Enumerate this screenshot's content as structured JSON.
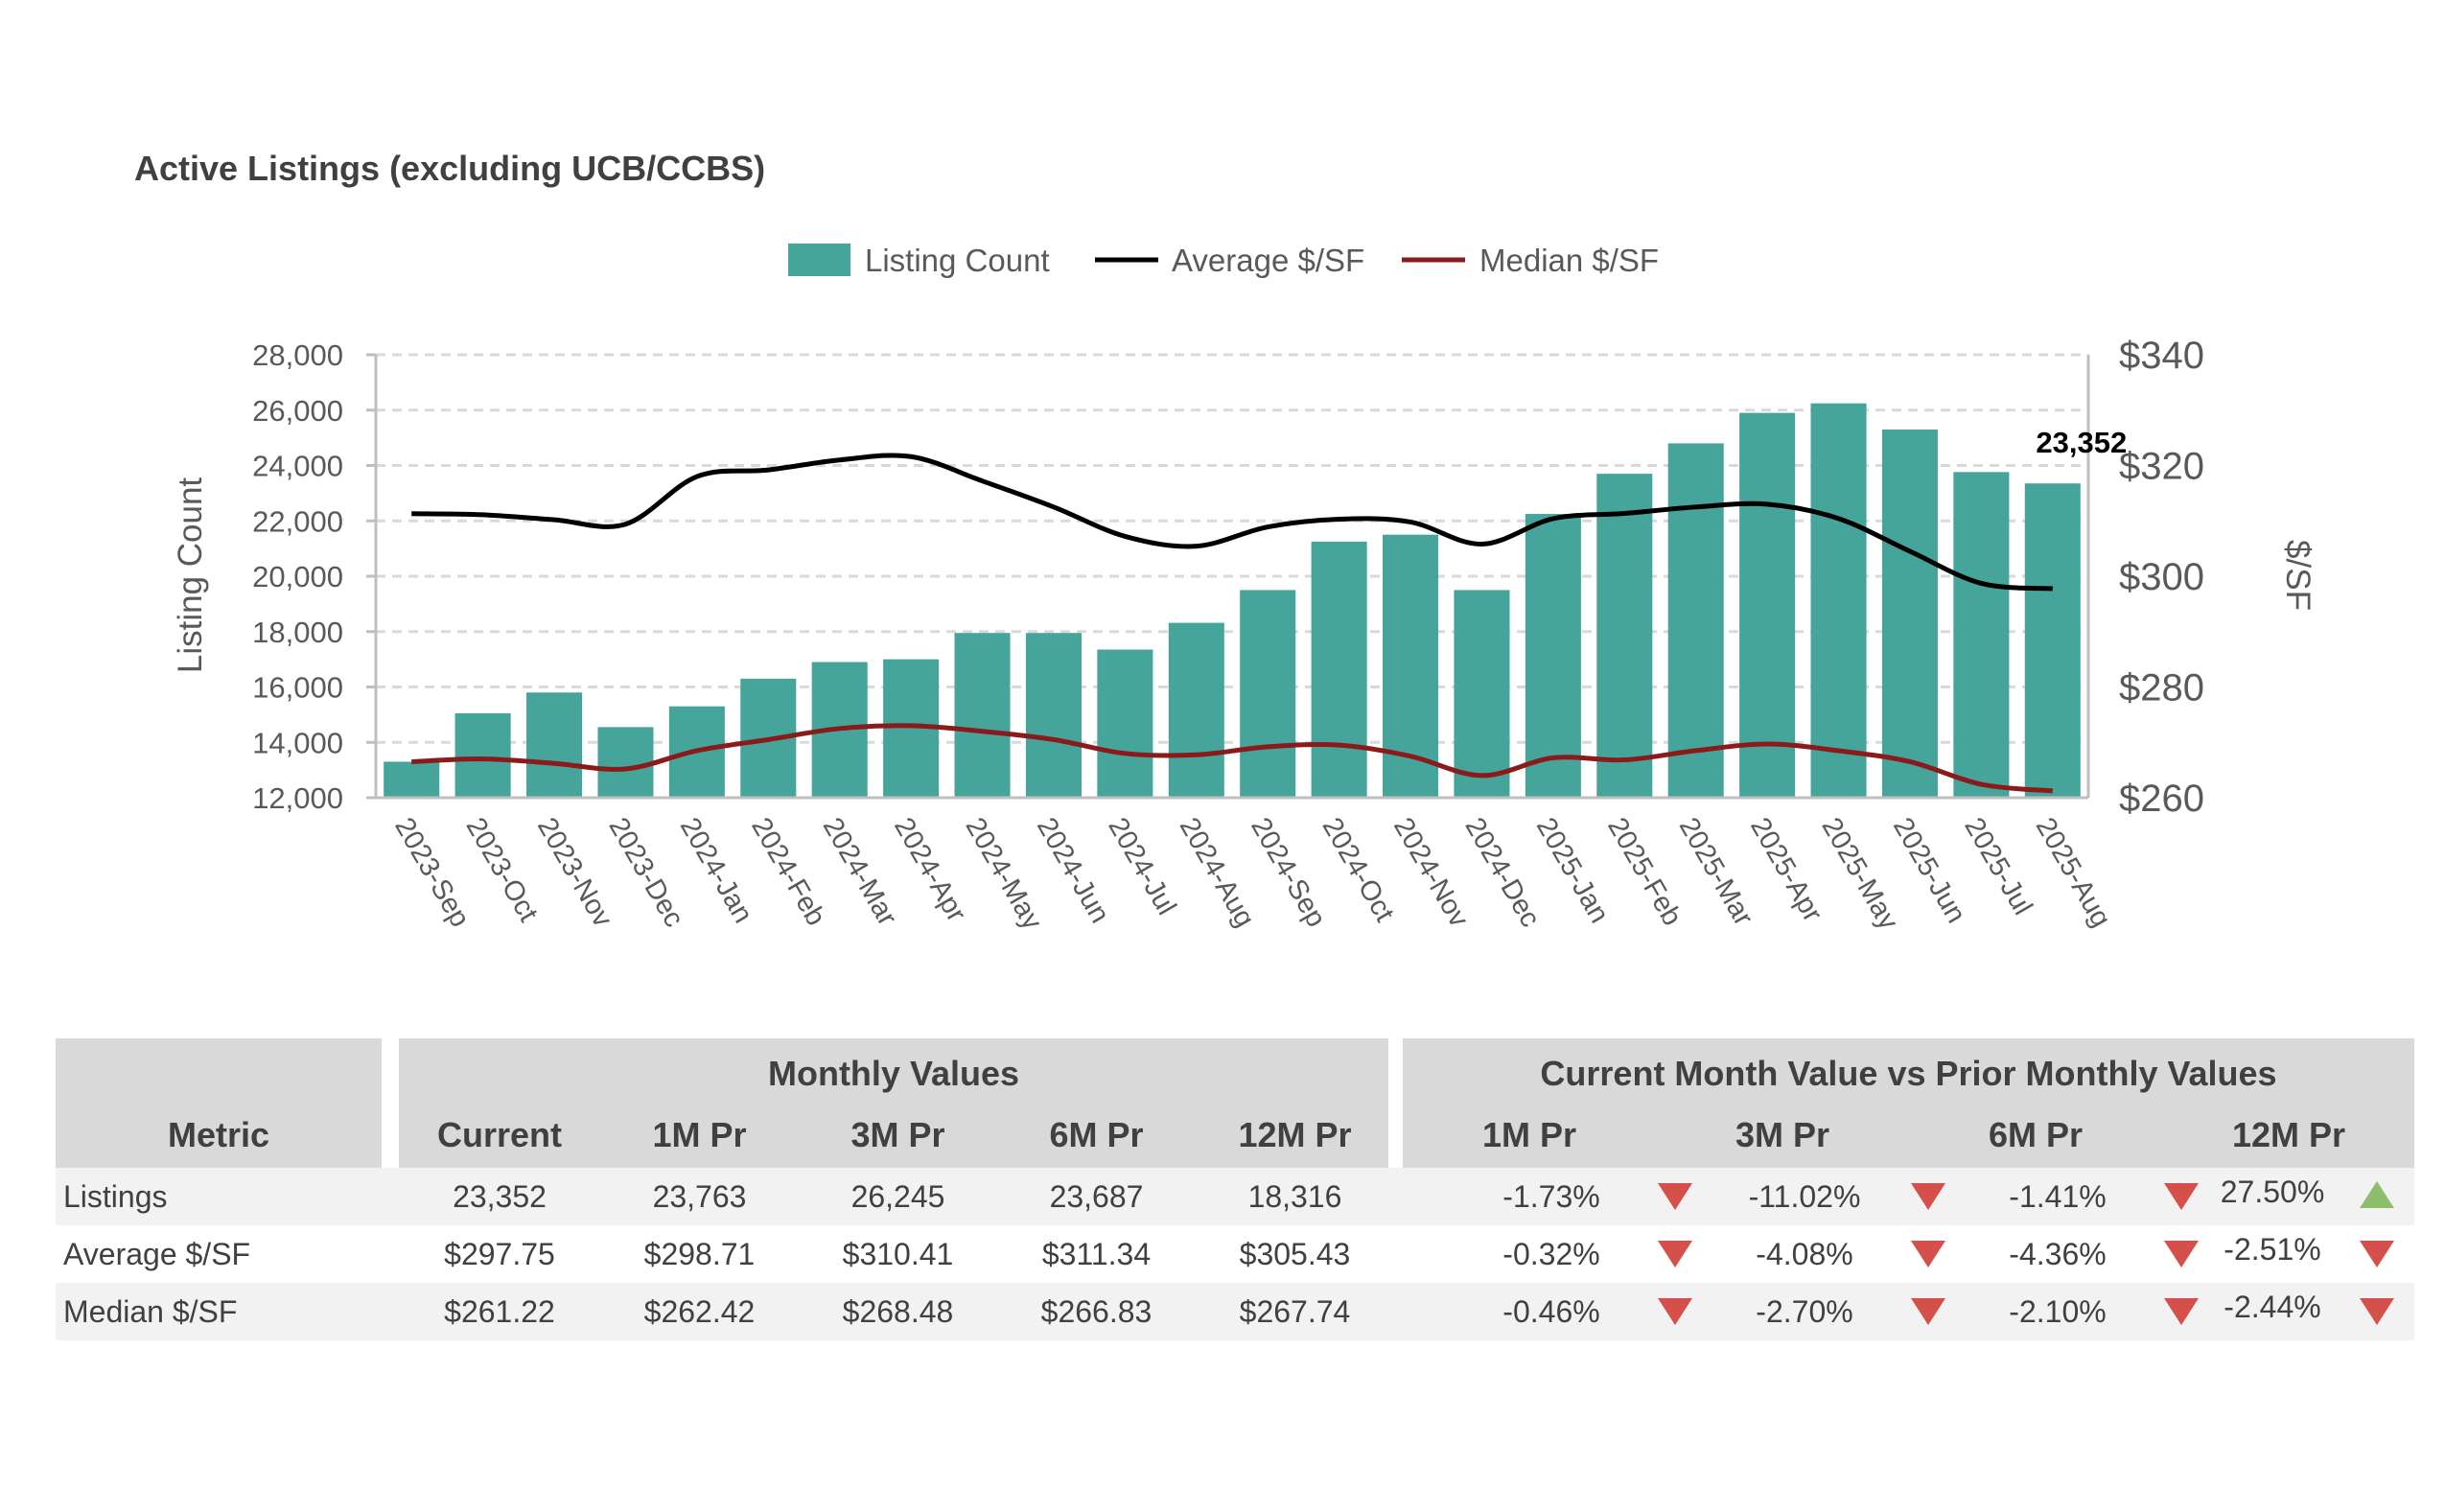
{
  "title": "Active Listings (excluding UCB/CCBS)",
  "chart_data": {
    "type": "bar+line",
    "categories": [
      "2023-Sep",
      "2023-Oct",
      "2023-Nov",
      "2023-Dec",
      "2024-Jan",
      "2024-Feb",
      "2024-Mar",
      "2024-Apr",
      "2024-May",
      "2024-Jun",
      "2024-Jul",
      "2024-Aug",
      "2024-Sep",
      "2024-Oct",
      "2024-Nov",
      "2024-Dec",
      "2025-Jan",
      "2025-Feb",
      "2025-Mar",
      "2025-Apr",
      "2025-May",
      "2025-Jun",
      "2025-Jul",
      "2025-Aug"
    ],
    "series": [
      {
        "name": "Listing Count",
        "type": "bar",
        "axis": "left",
        "color": "#45a59a",
        "values": [
          13300,
          15050,
          15800,
          14550,
          15300,
          16300,
          16900,
          17000,
          17950,
          17950,
          17350,
          18316,
          19500,
          21250,
          21500,
          19500,
          22250,
          23700,
          24800,
          25900,
          26245,
          25300,
          23763,
          23352
        ]
      },
      {
        "name": "Average $/SF",
        "type": "line",
        "axis": "right",
        "color": "#000000",
        "values": [
          311.3,
          311.1,
          310.2,
          309.4,
          318.0,
          319.2,
          321.0,
          321.6,
          317.2,
          312.5,
          307.2,
          305.43,
          308.9,
          310.3,
          309.8,
          305.8,
          310.4,
          311.34,
          312.5,
          313.0,
          310.41,
          304.5,
          298.71,
          297.75
        ]
      },
      {
        "name": "Median $/SF",
        "type": "line",
        "axis": "right",
        "color": "#8b1a1a",
        "values": [
          266.5,
          267.0,
          266.2,
          265.2,
          268.5,
          270.5,
          272.5,
          273.0,
          272.0,
          270.5,
          268.0,
          267.74,
          269.2,
          269.5,
          267.5,
          264.0,
          267.2,
          266.83,
          268.5,
          269.7,
          268.48,
          266.5,
          262.42,
          261.22
        ]
      }
    ],
    "y_left": {
      "title": "Listing Count",
      "min": 12000,
      "max": 28000,
      "ticks": [
        "12,000",
        "14,000",
        "16,000",
        "18,000",
        "20,000",
        "22,000",
        "24,000",
        "26,000",
        "28,000"
      ]
    },
    "y_right": {
      "title": "$/SF",
      "min": 260,
      "max": 340,
      "ticks": [
        "$260",
        "$280",
        "$300",
        "$320",
        "$340"
      ]
    },
    "grid": true,
    "legend_position": "top-center",
    "data_labels": [
      {
        "index": 23,
        "text": "23,352"
      }
    ]
  },
  "table": {
    "metric_header": "Metric",
    "group_monthly": "Monthly Values",
    "group_compare": "Current Month Value vs Prior Monthly Values",
    "monthly_headers": [
      "Current",
      "1M Pr",
      "3M Pr",
      "6M Pr",
      "12M Pr"
    ],
    "compare_headers": [
      "1M Pr",
      "3M Pr",
      "6M Pr",
      "12M Pr"
    ],
    "rows": [
      {
        "metric": "Listings",
        "monthly": [
          "23,352",
          "23,763",
          "26,245",
          "23,687",
          "18,316"
        ],
        "compare": [
          {
            "value": "-1.73%",
            "dir": "down"
          },
          {
            "value": "-11.02%",
            "dir": "down"
          },
          {
            "value": "-1.41%",
            "dir": "down"
          },
          {
            "value": "27.50%",
            "dir": "up"
          }
        ]
      },
      {
        "metric": "Average $/SF",
        "monthly": [
          "$297.75",
          "$298.71",
          "$310.41",
          "$311.34",
          "$305.43"
        ],
        "compare": [
          {
            "value": "-0.32%",
            "dir": "down"
          },
          {
            "value": "-4.08%",
            "dir": "down"
          },
          {
            "value": "-4.36%",
            "dir": "down"
          },
          {
            "value": "-2.51%",
            "dir": "down"
          }
        ]
      },
      {
        "metric": "Median $/SF",
        "monthly": [
          "$261.22",
          "$262.42",
          "$268.48",
          "$266.83",
          "$267.74"
        ],
        "compare": [
          {
            "value": "-0.46%",
            "dir": "down"
          },
          {
            "value": "-2.70%",
            "dir": "down"
          },
          {
            "value": "-2.10%",
            "dir": "down"
          },
          {
            "value": "-2.44%",
            "dir": "down"
          }
        ]
      }
    ]
  }
}
